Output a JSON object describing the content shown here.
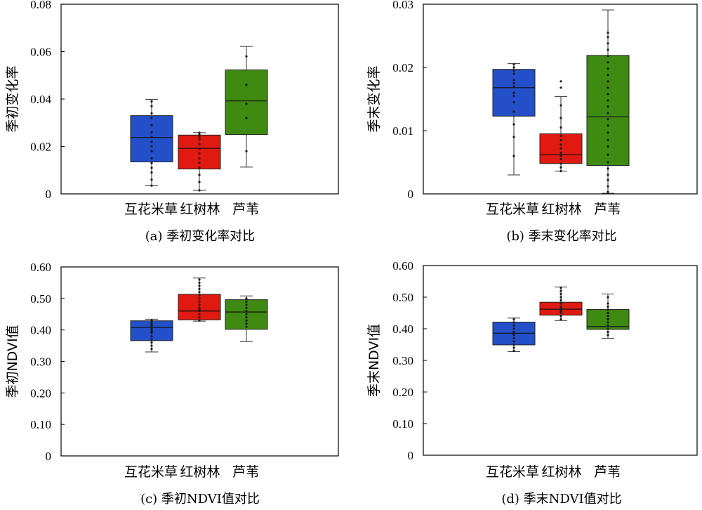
{
  "chart_data": [
    {
      "type": "box",
      "caption": "(a) 季初变化率对比",
      "ylabel": "季初变化率",
      "ylim": [
        0,
        0.08
      ],
      "yticks": [
        "0",
        "0.02",
        "0.04",
        "0.06",
        "0.08"
      ],
      "grid": false,
      "categories": [
        "互花米草",
        "红树林",
        "芦苇"
      ],
      "colors": [
        "#2350c8",
        "#e01a10",
        "#3f8a10"
      ],
      "boxes": [
        {
          "min": 0.0035,
          "q1": 0.0135,
          "median": 0.0238,
          "q3": 0.033,
          "max": 0.0398,
          "points": [
            0.0035,
            0.006,
            0.009,
            0.011,
            0.013,
            0.015,
            0.018,
            0.02,
            0.022,
            0.024,
            0.026,
            0.029,
            0.032,
            0.034,
            0.037,
            0.039
          ]
        },
        {
          "min": 0.0015,
          "q1": 0.0105,
          "median": 0.0192,
          "q3": 0.0248,
          "max": 0.0258,
          "points": [
            0.0015,
            0.005,
            0.008,
            0.011,
            0.013,
            0.015,
            0.017,
            0.019,
            0.021,
            0.023,
            0.024,
            0.025,
            0.0258
          ]
        },
        {
          "min": 0.0113,
          "q1": 0.025,
          "median": 0.0392,
          "q3": 0.0523,
          "max": 0.0622,
          "points": [
            0.018,
            0.032,
            0.038,
            0.046,
            0.058
          ]
        }
      ]
    },
    {
      "type": "box",
      "caption": "(b) 季末变化率对比",
      "ylabel": "季末变化率",
      "ylim": [
        0,
        0.03
      ],
      "yticks": [
        "0",
        "0.01",
        "0.02",
        "0.03"
      ],
      "grid": false,
      "categories": [
        "互花米草",
        "红树林",
        "芦苇"
      ],
      "colors": [
        "#2350c8",
        "#e01a10",
        "#3f8a10"
      ],
      "boxes": [
        {
          "min": 0.003,
          "q1": 0.0123,
          "median": 0.0168,
          "q3": 0.0197,
          "max": 0.0206,
          "points": [
            0.006,
            0.009,
            0.011,
            0.013,
            0.0145,
            0.0155,
            0.016,
            0.017,
            0.0175,
            0.018,
            0.019,
            0.0195,
            0.02,
            0.0205
          ]
        },
        {
          "min": 0.0036,
          "q1": 0.0048,
          "median": 0.0062,
          "q3": 0.0095,
          "max": 0.0154,
          "points": [
            0.0036,
            0.0042,
            0.0048,
            0.0055,
            0.006,
            0.0065,
            0.0072,
            0.0078,
            0.0085,
            0.0092,
            0.0105,
            0.012,
            0.014,
            0.0168,
            0.0178
          ]
        },
        {
          "min": 0.0001,
          "q1": 0.0045,
          "median": 0.0122,
          "q3": 0.0219,
          "max": 0.0291,
          "points": [
            0.0003,
            0.0012,
            0.0022,
            0.003,
            0.004,
            0.005,
            0.0062,
            0.0075,
            0.0085,
            0.0097,
            0.0108,
            0.0118,
            0.0128,
            0.0138,
            0.0148,
            0.0158,
            0.0168,
            0.0178,
            0.0188,
            0.0198,
            0.0208,
            0.0218,
            0.0228,
            0.0238,
            0.0248,
            0.0255
          ]
        }
      ]
    },
    {
      "type": "box",
      "caption": "(c) 季初NDVI值对比",
      "ylabel": "季初NDVI值",
      "ylim": [
        0,
        0.6
      ],
      "yticks": [
        "0",
        "0.10",
        "0.20",
        "0.30",
        "0.40",
        "0.50",
        "0.60"
      ],
      "grid": false,
      "categories": [
        "互花米草",
        "红树林",
        "芦苇"
      ],
      "colors": [
        "#2350c8",
        "#e01a10",
        "#3f8a10"
      ],
      "boxes": [
        {
          "min": 0.33,
          "q1": 0.366,
          "median": 0.408,
          "q3": 0.429,
          "max": 0.434,
          "points": [
            0.34,
            0.35,
            0.36,
            0.37,
            0.38,
            0.39,
            0.395,
            0.4,
            0.405,
            0.41,
            0.415,
            0.42,
            0.425,
            0.43
          ]
        },
        {
          "min": 0.428,
          "q1": 0.432,
          "median": 0.46,
          "q3": 0.513,
          "max": 0.565,
          "points": [
            0.43,
            0.44,
            0.45,
            0.46,
            0.465,
            0.47,
            0.48,
            0.49,
            0.5,
            0.51,
            0.52,
            0.53,
            0.54,
            0.55,
            0.56
          ]
        },
        {
          "min": 0.363,
          "q1": 0.402,
          "median": 0.457,
          "q3": 0.496,
          "max": 0.508,
          "points": [
            0.41,
            0.42,
            0.43,
            0.44,
            0.45,
            0.46,
            0.47,
            0.48,
            0.49,
            0.5
          ]
        }
      ]
    },
    {
      "type": "box",
      "caption": "(d) 季末NDVI值对比",
      "ylabel": "季末NDVI值",
      "ylim": [
        0,
        0.6
      ],
      "yticks": [
        "0",
        "0.10",
        "0.20",
        "0.30",
        "0.40",
        "0.50",
        "0.60"
      ],
      "grid": false,
      "categories": [
        "互花米草",
        "红树林",
        "芦苇"
      ],
      "colors": [
        "#2350c8",
        "#e01a10",
        "#3f8a10"
      ],
      "boxes": [
        {
          "min": 0.328,
          "q1": 0.349,
          "median": 0.386,
          "q3": 0.421,
          "max": 0.434,
          "points": [
            0.33,
            0.34,
            0.35,
            0.36,
            0.37,
            0.38,
            0.385,
            0.39,
            0.4,
            0.41,
            0.42,
            0.43
          ]
        },
        {
          "min": 0.426,
          "q1": 0.443,
          "median": 0.462,
          "q3": 0.484,
          "max": 0.532,
          "points": [
            0.43,
            0.44,
            0.45,
            0.455,
            0.46,
            0.465,
            0.47,
            0.48,
            0.49,
            0.5,
            0.51,
            0.52,
            0.53
          ]
        },
        {
          "min": 0.37,
          "q1": 0.398,
          "median": 0.407,
          "q3": 0.461,
          "max": 0.51,
          "points": [
            0.38,
            0.39,
            0.4,
            0.41,
            0.42,
            0.43,
            0.44,
            0.45,
            0.46,
            0.47,
            0.48,
            0.5
          ]
        }
      ]
    }
  ]
}
